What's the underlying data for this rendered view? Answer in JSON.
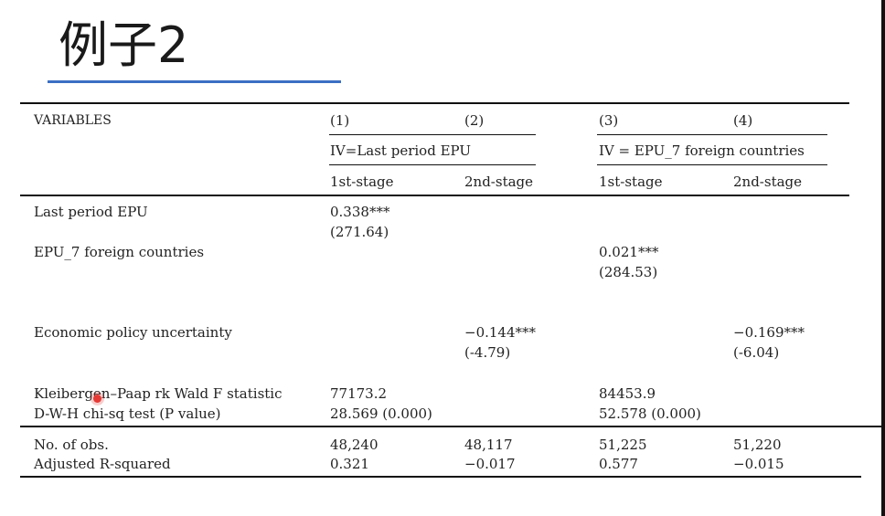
{
  "title": "例子2",
  "table": {
    "header": {
      "variables": "VARIABLES",
      "col_nums": [
        "(1)",
        "(2)",
        "(3)",
        "(4)"
      ],
      "group_left": "IV=Last period EPU",
      "group_right": "IV = EPU_7 foreign countries",
      "stages": [
        "1st-stage",
        "2nd-stage",
        "1st-stage",
        "2nd-stage"
      ]
    },
    "rows": {
      "last_period_epu": {
        "label": "Last period EPU",
        "coef": "0.338***",
        "tstat": "(271.64)"
      },
      "epu7": {
        "label": "EPU_7 foreign countries",
        "coef": "0.021***",
        "tstat": "(284.53)"
      },
      "epu": {
        "label": "Economic policy uncertainty",
        "coef2": "−0.144***",
        "t2": "(-4.79)",
        "coef4": "−0.169***",
        "t4": "(-6.04)"
      },
      "kp": {
        "label": "Kleibergen–Paap rk Wald F statistic",
        "c1": "77173.2",
        "c3": "84453.9"
      },
      "dwh": {
        "label": "D-W-H chi-sq test (P value)",
        "c1": "28.569 (0.000)",
        "c3": "52.578 (0.000)"
      },
      "nobs": {
        "label": "No. of obs.",
        "c1": "48,240",
        "c2": "48,117",
        "c3": "51,225",
        "c4": "51,220"
      },
      "r2": {
        "label": "Adjusted R-squared",
        "c1": "0.321",
        "c2": "−0.017",
        "c3": "0.577",
        "c4": "−0.015"
      }
    }
  }
}
